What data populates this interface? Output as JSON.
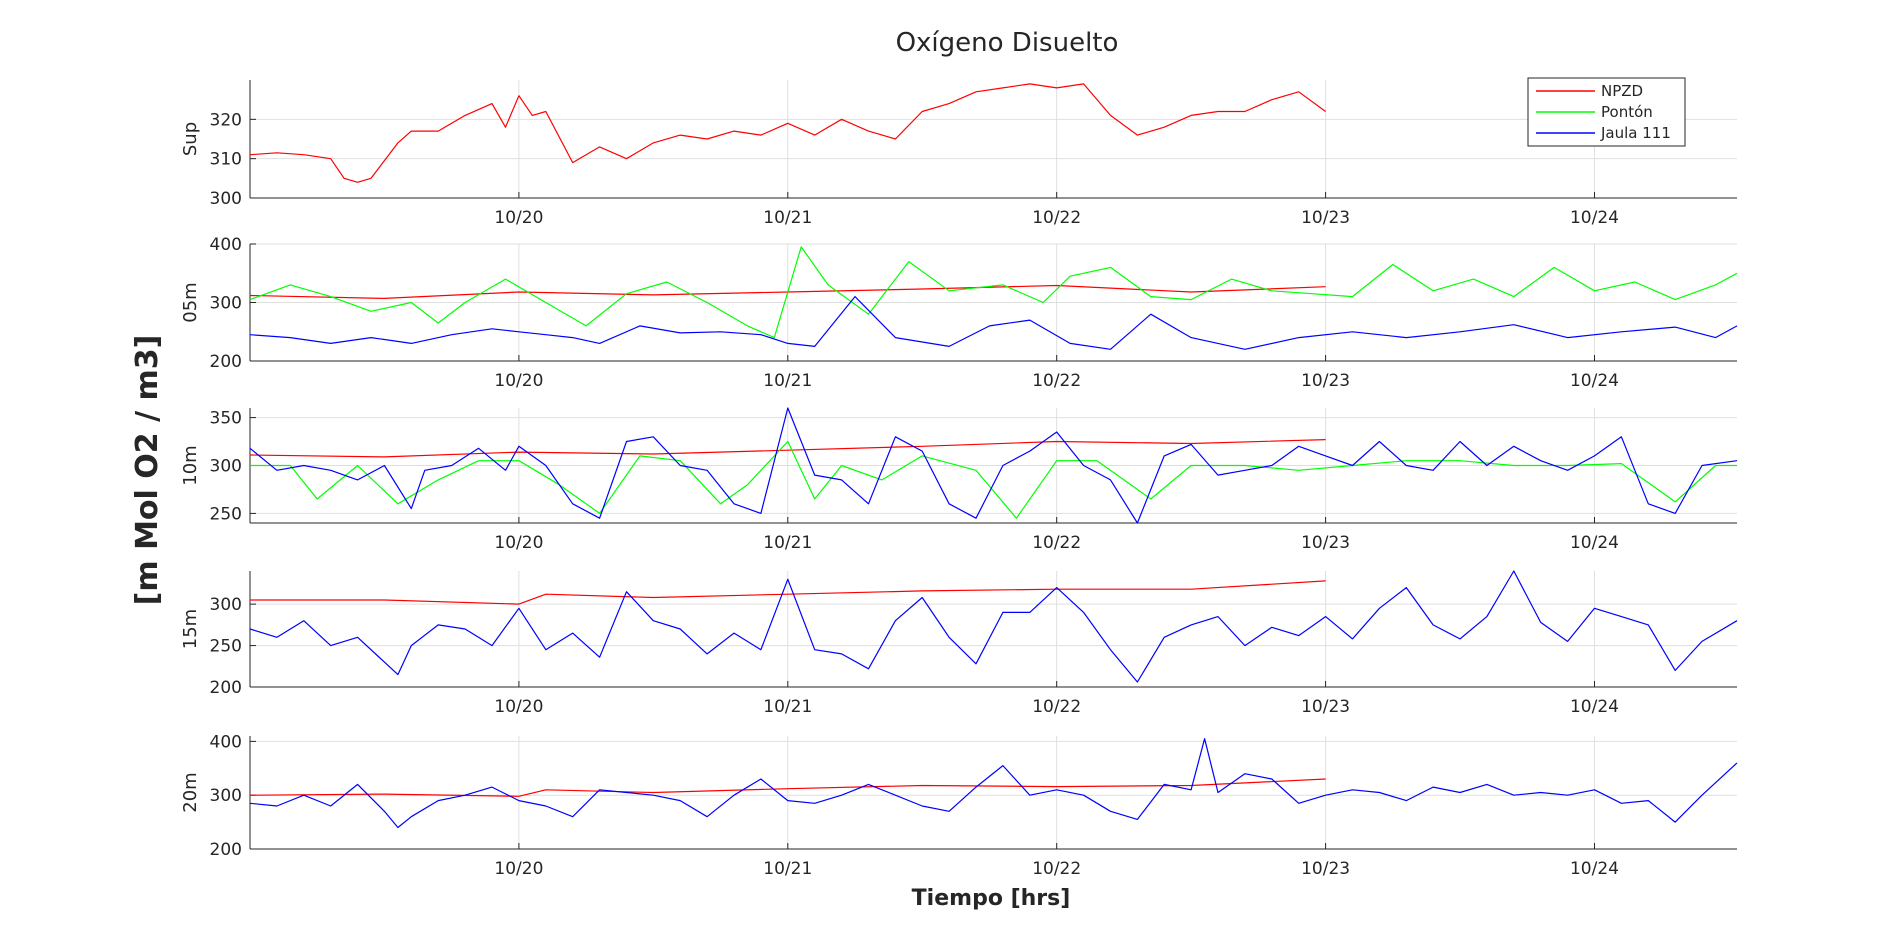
{
  "chart_data": {
    "type": "line",
    "title": "Oxígeno Disuelto",
    "ylabel": "[m Mol O2 / m3]",
    "xlabel": "Tiempo [hrs]",
    "x_unit": "days since 10/19 00:00",
    "xlim": [
      0,
      5.53
    ],
    "xticks": [
      1,
      2,
      3,
      4,
      5
    ],
    "xtick_labels": [
      "10/20",
      "10/21",
      "10/22",
      "10/23",
      "10/24"
    ],
    "grid": true,
    "legend": {
      "placement": "top-right of first panel",
      "entries": [
        {
          "name": "NPZD",
          "color": "#ff0000"
        },
        {
          "name": "Pontón",
          "color": "#00ff00"
        },
        {
          "name": "Jaula 111",
          "color": "#0000ff"
        }
      ]
    },
    "series_styles": {
      "NPZD": {
        "color": "#ff0000"
      },
      "Pontón": {
        "color": "#00ff00"
      },
      "Jaula 111": {
        "color": "#0000ff"
      }
    },
    "panels": [
      {
        "ylabel": "Sup",
        "ylim": [
          300,
          330
        ],
        "yticks": [
          300,
          310,
          320
        ],
        "show_legend": true,
        "series": [
          {
            "name": "NPZD",
            "x": [
              0,
              0.1,
              0.2,
              0.3,
              0.35,
              0.4,
              0.45,
              0.55,
              0.6,
              0.7,
              0.8,
              0.9,
              0.95,
              1.0,
              1.05,
              1.1,
              1.2,
              1.3,
              1.4,
              1.5,
              1.6,
              1.7,
              1.8,
              1.9,
              2.0,
              2.1,
              2.2,
              2.3,
              2.4,
              2.5,
              2.6,
              2.7,
              2.8,
              2.9,
              3.0,
              3.1,
              3.2,
              3.3,
              3.4,
              3.5,
              3.6,
              3.7,
              3.8,
              3.9,
              4.0
            ],
            "values": [
              311,
              311.5,
              311,
              310,
              305,
              304,
              305,
              314,
              317,
              317,
              321,
              324,
              318,
              326,
              321,
              322,
              309,
              313,
              310,
              314,
              316,
              315,
              317,
              316,
              319,
              316,
              320,
              317,
              315,
              322,
              324,
              327,
              328,
              329,
              328,
              329,
              321,
              316,
              318,
              321,
              322,
              322,
              325,
              327,
              322
            ]
          }
        ]
      },
      {
        "ylabel": "05m",
        "ylim": [
          200,
          400
        ],
        "yticks": [
          200,
          300,
          400
        ],
        "series": [
          {
            "name": "NPZD",
            "x": [
              0,
              0.5,
              1.0,
              1.5,
              2.0,
              2.5,
              3.0,
              3.5,
              4.0
            ],
            "values": [
              312,
              307,
              318,
              313,
              318,
              323,
              329,
              318,
              327
            ]
          },
          {
            "name": "Pontón",
            "x": [
              0,
              0.15,
              0.3,
              0.45,
              0.6,
              0.7,
              0.8,
              0.95,
              1.1,
              1.25,
              1.4,
              1.55,
              1.7,
              1.85,
              1.95,
              2.05,
              2.15,
              2.3,
              2.45,
              2.6,
              2.8,
              2.95,
              3.05,
              3.2,
              3.35,
              3.5,
              3.65,
              3.8,
              3.95,
              4.1,
              4.25,
              4.4,
              4.55,
              4.7,
              4.85,
              5.0,
              5.15,
              5.3,
              5.45,
              5.53
            ],
            "values": [
              305,
              330,
              310,
              285,
              300,
              265,
              300,
              340,
              300,
              260,
              315,
              335,
              300,
              260,
              240,
              395,
              330,
              280,
              370,
              320,
              330,
              300,
              345,
              360,
              310,
              305,
              340,
              320,
              315,
              310,
              365,
              320,
              340,
              310,
              360,
              320,
              335,
              305,
              330,
              350
            ]
          },
          {
            "name": "Jaula 111",
            "x": [
              0,
              0.15,
              0.3,
              0.45,
              0.6,
              0.75,
              0.9,
              1.0,
              1.1,
              1.2,
              1.3,
              1.45,
              1.6,
              1.75,
              1.9,
              2.0,
              2.1,
              2.25,
              2.4,
              2.6,
              2.75,
              2.9,
              3.05,
              3.2,
              3.35,
              3.5,
              3.7,
              3.9,
              4.1,
              4.3,
              4.5,
              4.7,
              4.9,
              5.1,
              5.3,
              5.45,
              5.53
            ],
            "values": [
              245,
              240,
              230,
              240,
              230,
              245,
              255,
              250,
              245,
              240,
              230,
              260,
              248,
              250,
              245,
              230,
              225,
              310,
              240,
              225,
              260,
              270,
              230,
              220,
              280,
              240,
              220,
              240,
              250,
              240,
              250,
              262,
              240,
              250,
              258,
              240,
              260
            ]
          }
        ]
      },
      {
        "ylabel": "10m",
        "ylim": [
          240,
          360
        ],
        "yticks": [
          250,
          300,
          350
        ],
        "series": [
          {
            "name": "NPZD",
            "x": [
              0,
              0.5,
              1.0,
              1.5,
              2.0,
              2.5,
              3.0,
              3.5,
              4.0
            ],
            "values": [
              311,
              309,
              314,
              312,
              316,
              320,
              325,
              323,
              327
            ]
          },
          {
            "name": "Pontón",
            "x": [
              0,
              0.15,
              0.25,
              0.4,
              0.55,
              0.7,
              0.85,
              1.0,
              1.15,
              1.3,
              1.45,
              1.6,
              1.75,
              1.85,
              2.0,
              2.1,
              2.2,
              2.35,
              2.5,
              2.7,
              2.85,
              3.0,
              3.15,
              3.35,
              3.5,
              3.7,
              3.9,
              4.1,
              4.3,
              4.5,
              4.7,
              4.9,
              5.1,
              5.3,
              5.45,
              5.53
            ],
            "values": [
              300,
              300,
              265,
              300,
              260,
              285,
              305,
              305,
              280,
              250,
              310,
              305,
              260,
              280,
              325,
              265,
              300,
              285,
              310,
              295,
              245,
              305,
              305,
              265,
              300,
              300,
              295,
              300,
              305,
              305,
              300,
              300,
              302,
              262,
              300,
              300
            ]
          },
          {
            "name": "Jaula 111",
            "x": [
              0,
              0.1,
              0.2,
              0.3,
              0.4,
              0.5,
              0.6,
              0.65,
              0.75,
              0.85,
              0.95,
              1.0,
              1.1,
              1.2,
              1.3,
              1.4,
              1.5,
              1.6,
              1.7,
              1.8,
              1.9,
              2.0,
              2.1,
              2.2,
              2.3,
              2.4,
              2.5,
              2.6,
              2.7,
              2.8,
              2.9,
              3.0,
              3.1,
              3.2,
              3.3,
              3.4,
              3.5,
              3.6,
              3.7,
              3.8,
              3.9,
              4.0,
              4.1,
              4.2,
              4.3,
              4.4,
              4.5,
              4.6,
              4.7,
              4.8,
              4.9,
              5.0,
              5.1,
              5.2,
              5.3,
              5.4,
              5.53
            ],
            "values": [
              318,
              295,
              300,
              295,
              285,
              300,
              255,
              295,
              300,
              318,
              295,
              320,
              300,
              260,
              245,
              325,
              330,
              300,
              295,
              260,
              250,
              360,
              290,
              285,
              260,
              330,
              315,
              260,
              245,
              300,
              315,
              335,
              300,
              285,
              240,
              310,
              322,
              290,
              295,
              300,
              320,
              310,
              300,
              325,
              300,
              295,
              325,
              300,
              320,
              305,
              295,
              310,
              330,
              260,
              250,
              300,
              305
            ]
          }
        ]
      },
      {
        "ylabel": "15m",
        "ylim": [
          200,
          340
        ],
        "yticks": [
          200,
          250,
          300
        ],
        "series": [
          {
            "name": "NPZD",
            "x": [
              0,
              0.5,
              1.0,
              1.1,
              1.5,
              2.0,
              2.5,
              3.0,
              3.5,
              4.0
            ],
            "values": [
              305,
              305,
              300,
              312,
              308,
              312,
              316,
              318,
              318,
              328
            ]
          },
          {
            "name": "Jaula 111",
            "x": [
              0,
              0.1,
              0.2,
              0.3,
              0.4,
              0.5,
              0.55,
              0.6,
              0.7,
              0.8,
              0.9,
              1.0,
              1.1,
              1.2,
              1.3,
              1.4,
              1.5,
              1.6,
              1.7,
              1.8,
              1.9,
              2.0,
              2.1,
              2.2,
              2.3,
              2.4,
              2.5,
              2.6,
              2.7,
              2.8,
              2.9,
              3.0,
              3.1,
              3.2,
              3.3,
              3.4,
              3.5,
              3.6,
              3.7,
              3.8,
              3.9,
              4.0,
              4.1,
              4.2,
              4.3,
              4.4,
              4.5,
              4.6,
              4.7,
              4.8,
              4.9,
              5.0,
              5.1,
              5.2,
              5.3,
              5.4,
              5.53
            ],
            "values": [
              270,
              260,
              280,
              250,
              260,
              230,
              215,
              250,
              275,
              270,
              250,
              295,
              245,
              265,
              236,
              315,
              280,
              270,
              240,
              265,
              245,
              330,
              245,
              240,
              222,
              280,
              308,
              260,
              228,
              290,
              290,
              320,
              290,
              245,
              206,
              260,
              275,
              285,
              250,
              272,
              262,
              285,
              258,
              295,
              320,
              275,
              258,
              285,
              340,
              278,
              255,
              295,
              285,
              275,
              220,
              255,
              280
            ]
          }
        ]
      },
      {
        "ylabel": "20m",
        "ylim": [
          200,
          410
        ],
        "yticks": [
          200,
          300,
          400
        ],
        "series": [
          {
            "name": "NPZD",
            "x": [
              0,
              0.5,
              1.0,
              1.1,
              1.5,
              2.0,
              2.5,
              3.0,
              3.5,
              4.0
            ],
            "values": [
              300,
              302,
              298,
              310,
              305,
              312,
              318,
              316,
              318,
              330
            ]
          },
          {
            "name": "Jaula 111",
            "x": [
              0,
              0.1,
              0.2,
              0.3,
              0.4,
              0.5,
              0.55,
              0.6,
              0.7,
              0.8,
              0.9,
              1.0,
              1.1,
              1.2,
              1.3,
              1.4,
              1.5,
              1.6,
              1.7,
              1.8,
              1.9,
              2.0,
              2.1,
              2.2,
              2.3,
              2.4,
              2.5,
              2.6,
              2.7,
              2.8,
              2.9,
              3.0,
              3.1,
              3.2,
              3.3,
              3.4,
              3.5,
              3.55,
              3.6,
              3.7,
              3.8,
              3.9,
              4.0,
              4.1,
              4.2,
              4.3,
              4.4,
              4.5,
              4.6,
              4.7,
              4.8,
              4.9,
              5.0,
              5.1,
              5.2,
              5.3,
              5.4,
              5.53
            ],
            "values": [
              285,
              280,
              300,
              280,
              320,
              270,
              240,
              260,
              290,
              300,
              315,
              290,
              280,
              260,
              310,
              305,
              300,
              290,
              260,
              300,
              330,
              290,
              285,
              300,
              320,
              300,
              280,
              270,
              315,
              355,
              300,
              310,
              300,
              270,
              255,
              320,
              310,
              405,
              305,
              340,
              330,
              285,
              300,
              310,
              305,
              290,
              315,
              305,
              320,
              300,
              305,
              300,
              310,
              285,
              290,
              250,
              300,
              360
            ]
          }
        ]
      }
    ]
  }
}
